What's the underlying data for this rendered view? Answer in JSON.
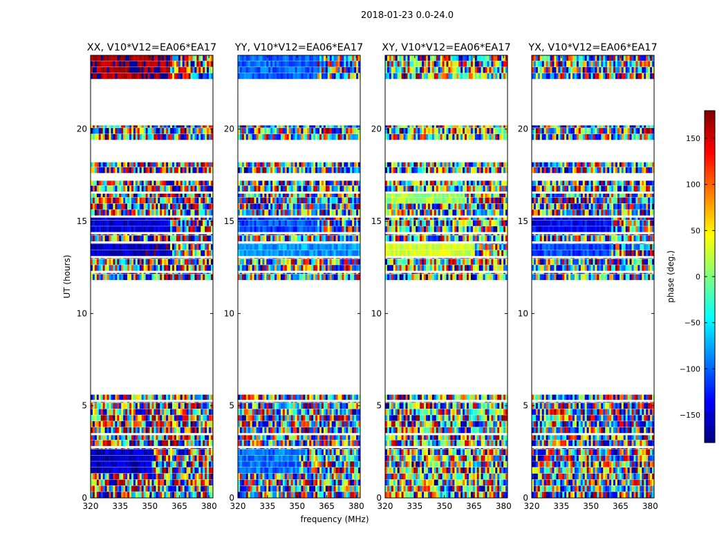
{
  "figure": {
    "suptitle": "2018-01-23 0.0-24.0",
    "xlabel": "frequency (MHz)",
    "ylabel": "UT (hours)"
  },
  "colorbar": {
    "label": "phase (deg.)",
    "range": [
      -180,
      180
    ],
    "ticks": [
      150,
      100,
      50,
      0,
      -50,
      -100,
      -150
    ],
    "tick_labels": [
      "150",
      "100",
      "50",
      "0",
      "−50",
      "−100",
      "−150"
    ],
    "colormap": [
      "#00007f",
      "#0000ff",
      "#007fff",
      "#00ffff",
      "#7fff7f",
      "#ffff00",
      "#ff7f00",
      "#ff0000",
      "#7f0000"
    ]
  },
  "chart_data": {
    "type": "heatmap",
    "title": "2018-01-23 0.0-24.0",
    "xlabel": "frequency (MHz)",
    "ylabel": "UT (hours)",
    "xlim": [
      320,
      382
    ],
    "ylim": [
      0,
      24
    ],
    "xticks": [
      320,
      335,
      350,
      365,
      380
    ],
    "yticks": [
      0,
      5,
      10,
      15,
      20
    ],
    "color_label": "phase (deg.)",
    "color_range": [
      -180,
      180
    ],
    "panels": [
      {
        "title": "XX, V10*V12=EA06*EA17",
        "dominant_phase_deg": 170,
        "strong_bands": [
          {
            "t": [
              22.7,
              24.0
            ],
            "f": [
              320,
              360
            ],
            "phase": 170
          },
          {
            "t": [
              14.4,
              15.2
            ],
            "f": [
              320,
              360
            ],
            "phase": -150
          },
          {
            "t": [
              13.1,
              13.8
            ],
            "f": [
              320,
              360
            ],
            "phase": -160
          },
          {
            "t": [
              1.3,
              2.4
            ],
            "f": [
              320,
              350
            ],
            "phase": -155
          }
        ]
      },
      {
        "title": "YY, V10*V12=EA06*EA17",
        "dominant_phase_deg": -100,
        "strong_bands": [
          {
            "t": [
              22.7,
              24.0
            ],
            "f": [
              320,
              360
            ],
            "phase": -100
          },
          {
            "t": [
              14.4,
              15.2
            ],
            "f": [
              320,
              360
            ],
            "phase": -110
          },
          {
            "t": [
              13.1,
              13.8
            ],
            "f": [
              320,
              382
            ],
            "phase": -80
          },
          {
            "t": [
              1.3,
              2.4
            ],
            "f": [
              320,
              350
            ],
            "phase": -95
          }
        ]
      },
      {
        "title": "XY, V10*V12=EA06*EA17",
        "dominant_phase_deg": 20,
        "strong_bands": [
          {
            "t": [
              13.1,
              13.8
            ],
            "f": [
              320,
              365
            ],
            "phase": 30
          },
          {
            "t": [
              15.8,
              16.4
            ],
            "f": [
              320,
              360
            ],
            "phase": 10
          }
        ]
      },
      {
        "title": "YX, V10*V12=EA06*EA17",
        "dominant_phase_deg": -120,
        "strong_bands": [
          {
            "t": [
              14.4,
              15.2
            ],
            "f": [
              320,
              360
            ],
            "phase": -140
          },
          {
            "t": [
              13.1,
              13.8
            ],
            "f": [
              320,
              360
            ],
            "phase": -110
          }
        ]
      }
    ],
    "data_rows_ut": [
      [
        0,
        2.7
      ],
      [
        2.8,
        3.4
      ],
      [
        3.5,
        5.2
      ],
      [
        5.3,
        5.6
      ],
      [
        11.8,
        12.2
      ],
      [
        12.3,
        13.0
      ],
      [
        13.1,
        13.8
      ],
      [
        13.9,
        14.3
      ],
      [
        14.4,
        15.2
      ],
      [
        15.3,
        16.5
      ],
      [
        16.6,
        17.2
      ],
      [
        17.6,
        18.2
      ],
      [
        19.4,
        20.2
      ],
      [
        22.7,
        24.0
      ]
    ]
  }
}
